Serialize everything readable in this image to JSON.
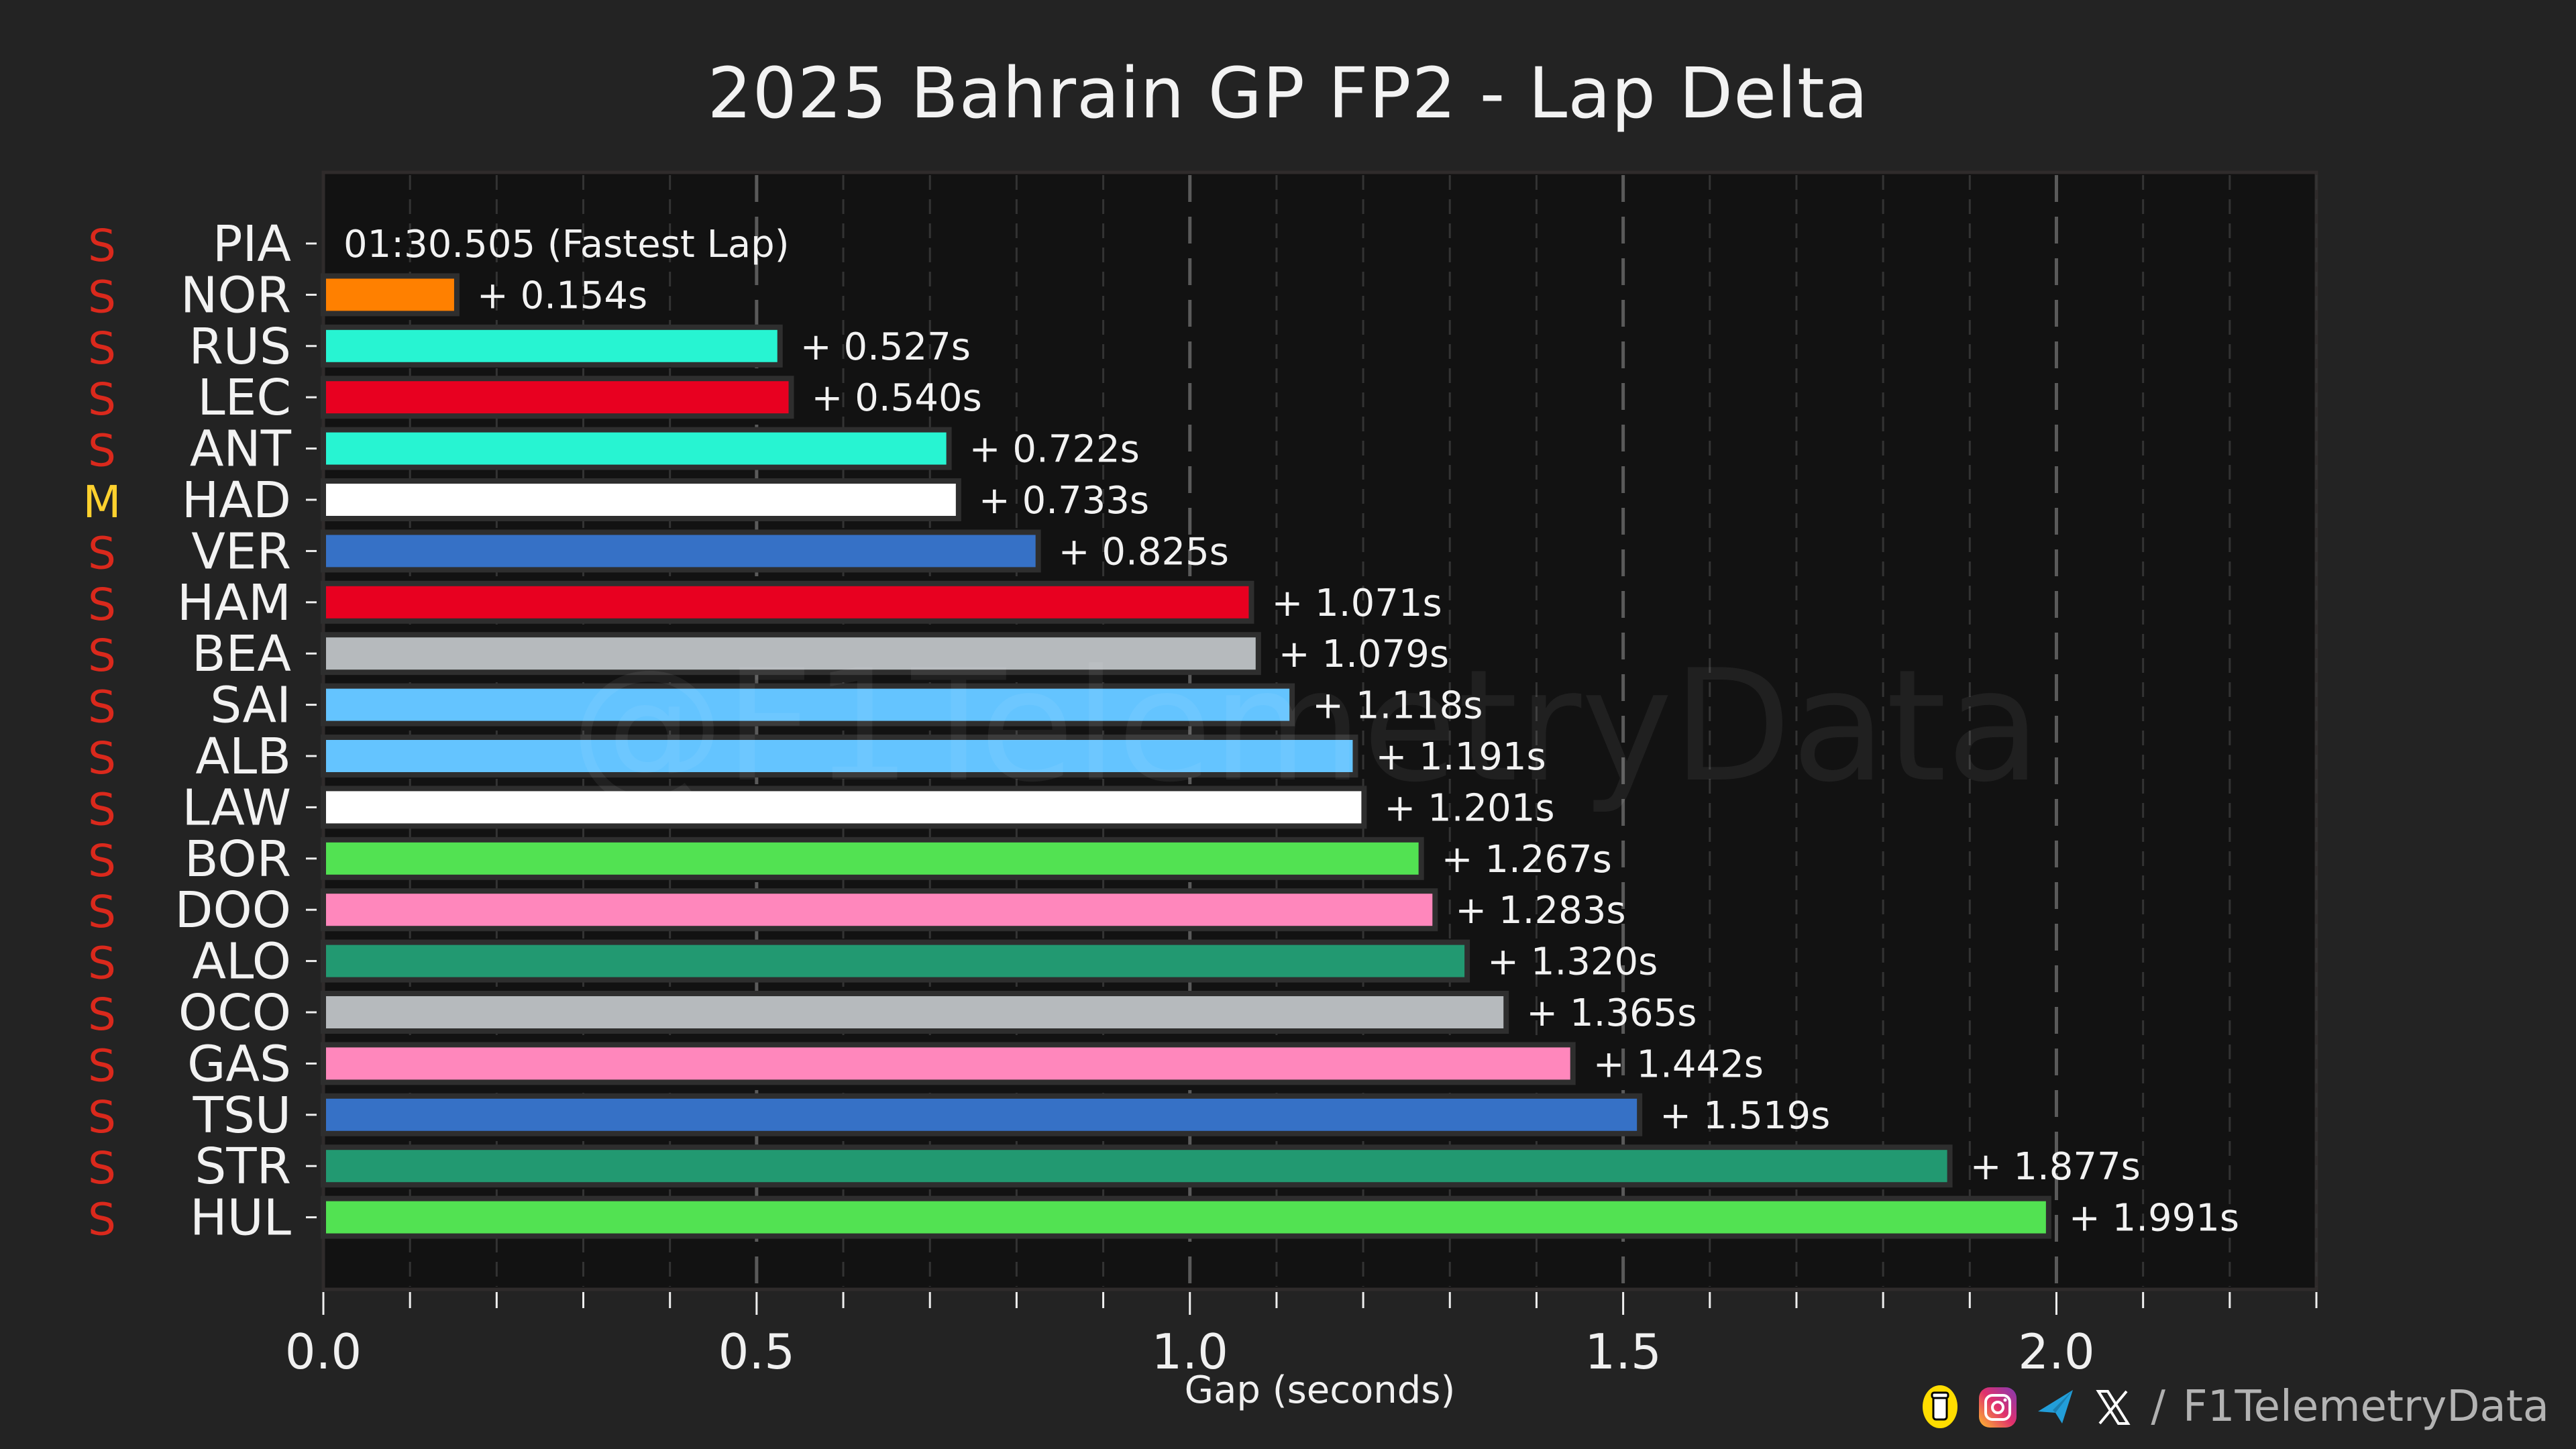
{
  "header": {
    "title": "2025 Bahrain GP FP2 - Lap Delta"
  },
  "watermark": "@F1TelemetryData",
  "footer": {
    "icons": [
      "buymeacoffee-icon",
      "instagram-icon",
      "telegram-icon",
      "x-icon"
    ],
    "separator": "/",
    "handle": "F1TelemetryData"
  },
  "chart_data": {
    "type": "bar",
    "orientation": "horizontal",
    "title": "2025 Bahrain GP FP2 - Lap Delta",
    "xlabel": "Gap (seconds)",
    "ylabel": "",
    "xlim": [
      0,
      2.3
    ],
    "xticks": [
      0.0,
      0.5,
      1.0,
      1.5,
      2.0
    ],
    "xtick_labels": [
      "0.0",
      "0.5",
      "1.0",
      "1.5",
      "2.0"
    ],
    "minor_tick_step": 0.1,
    "grid": true,
    "fastest_lap_label": "01:30.505 (Fastest Lap)",
    "categories": [
      "PIA",
      "NOR",
      "RUS",
      "LEC",
      "ANT",
      "HAD",
      "VER",
      "HAM",
      "BEA",
      "SAI",
      "ALB",
      "LAW",
      "BOR",
      "DOO",
      "ALO",
      "OCO",
      "GAS",
      "TSU",
      "STR",
      "HUL"
    ],
    "values": [
      0.0,
      0.154,
      0.527,
      0.54,
      0.722,
      0.733,
      0.825,
      1.071,
      1.079,
      1.118,
      1.191,
      1.201,
      1.267,
      1.283,
      1.32,
      1.365,
      1.442,
      1.519,
      1.877,
      1.991
    ],
    "value_labels": [
      "01:30.505 (Fastest Lap)",
      "+ 0.154s",
      "+ 0.527s",
      "+ 0.540s",
      "+ 0.722s",
      "+ 0.733s",
      "+ 0.825s",
      "+ 1.071s",
      "+ 1.079s",
      "+ 1.118s",
      "+ 1.191s",
      "+ 1.201s",
      "+ 1.267s",
      "+ 1.283s",
      "+ 1.320s",
      "+ 1.365s",
      "+ 1.442s",
      "+ 1.519s",
      "+ 1.877s",
      "+ 1.991s"
    ],
    "colors": [
      "#FF8000",
      "#FF8000",
      "#27F4D2",
      "#E80020",
      "#27F4D2",
      "#FFFFFF",
      "#3671C6",
      "#E80020",
      "#B6BABD",
      "#64C4FF",
      "#64C4FF",
      "#FFFFFF",
      "#52E252",
      "#FF87BC",
      "#229971",
      "#B6BABD",
      "#FF87BC",
      "#3671C6",
      "#229971",
      "#52E252"
    ],
    "tyres": [
      "S",
      "S",
      "S",
      "S",
      "S",
      "M",
      "S",
      "S",
      "S",
      "S",
      "S",
      "S",
      "S",
      "S",
      "S",
      "S",
      "S",
      "S",
      "S",
      "S"
    ],
    "tyre_colors": {
      "S": "#DA291C",
      "M": "#FFD12E"
    }
  }
}
